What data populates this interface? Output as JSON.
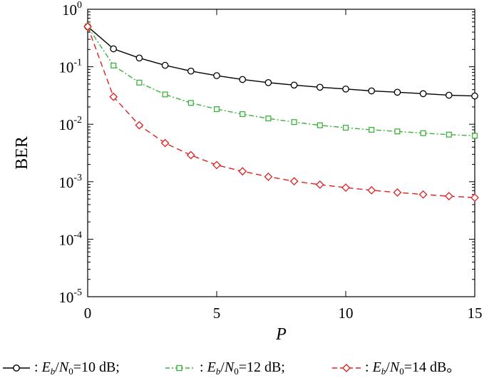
{
  "chart_data": {
    "type": "line",
    "xlabel": "P",
    "ylabel": "BER",
    "x": [
      0,
      1,
      2,
      3,
      4,
      5,
      6,
      7,
      8,
      9,
      10,
      11,
      12,
      13,
      14,
      15
    ],
    "xlim": [
      0,
      15
    ],
    "ylim": [
      1e-05,
      1
    ],
    "yscale": "log",
    "xticks": [
      0,
      5,
      10,
      15
    ],
    "yticks": [
      {
        "value": 1,
        "base": "10",
        "exp": "0"
      },
      {
        "value": 0.1,
        "base": "10",
        "exp": "-1"
      },
      {
        "value": 0.01,
        "base": "10",
        "exp": "-2"
      },
      {
        "value": 0.001,
        "base": "10",
        "exp": "-3"
      },
      {
        "value": 0.0001,
        "base": "10",
        "exp": "-4"
      },
      {
        "value": 1e-05,
        "base": "10",
        "exp": "-5"
      }
    ],
    "grid": false,
    "legend_placement": "bottom",
    "series": [
      {
        "name": "Eb/N0=10 dB",
        "color": "#000000",
        "marker": "circle",
        "dash": "solid",
        "values": [
          0.5,
          0.205,
          0.142,
          0.106,
          0.084,
          0.07,
          0.06,
          0.053,
          0.048,
          0.044,
          0.041,
          0.038,
          0.036,
          0.034,
          0.032,
          0.031
        ]
      },
      {
        "name": "Eb/N0=12 dB",
        "color": "#3cb23c",
        "marker": "square",
        "dash": "dashdot",
        "values": [
          0.5,
          0.105,
          0.053,
          0.033,
          0.0235,
          0.0183,
          0.015,
          0.0126,
          0.0109,
          0.0096,
          0.0087,
          0.008,
          0.0075,
          0.007,
          0.0066,
          0.0063
        ]
      },
      {
        "name": "Eb/N0=14 dB",
        "color": "#e02020",
        "marker": "diamond",
        "dash": "dashed",
        "values": [
          0.5,
          0.03,
          0.0096,
          0.0047,
          0.0029,
          0.00195,
          0.00152,
          0.00122,
          0.00102,
          0.00089,
          0.00079,
          0.00071,
          0.00065,
          0.0006,
          0.00056,
          0.00053
        ]
      }
    ],
    "legend": [
      {
        "sym": "E",
        "sub": "b",
        "sep": "/",
        "sym2": "N",
        "sub2": "0",
        "rest": "=10 dB;"
      },
      {
        "sym": "E",
        "sub": "b",
        "sep": "/",
        "sym2": "N",
        "sub2": "0",
        "rest": "=12 dB;"
      },
      {
        "sym": "E",
        "sub": "b",
        "sep": "/",
        "sym2": "N",
        "sub2": "0",
        "rest": "=14 dB。"
      }
    ],
    "legend_prefix": ":"
  }
}
